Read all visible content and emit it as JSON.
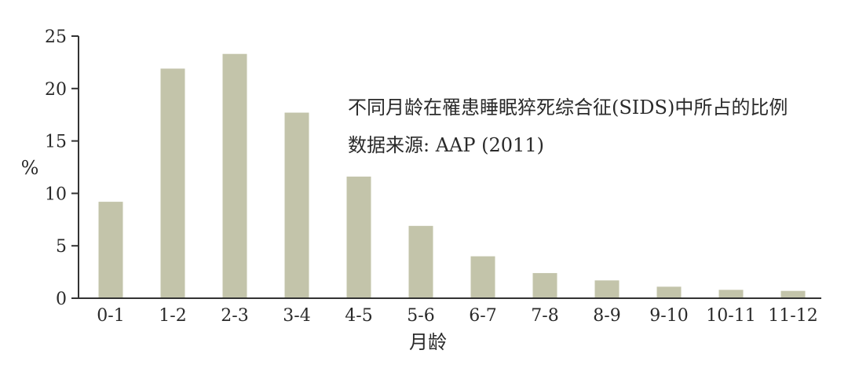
{
  "chart_data": {
    "type": "bar",
    "title": "不同月龄在罹患睡眠猝死综合征(SIDS)中所占的比例",
    "subtitle": "数据来源: AAP (2011)",
    "xlabel": "月龄",
    "ylabel": "%",
    "ylim": [
      0,
      25
    ],
    "yticks": [
      "0",
      "5",
      "10",
      "15",
      "20",
      "25"
    ],
    "yticks_values": [
      0,
      5,
      10,
      15,
      20,
      25
    ],
    "categories": [
      "0-1",
      "1-2",
      "2-3",
      "3-4",
      "4-5",
      "5-6",
      "6-7",
      "7-8",
      "8-9",
      "9-10",
      "10-11",
      "11-12"
    ],
    "values": [
      9.2,
      21.9,
      23.3,
      17.7,
      11.6,
      6.9,
      4.0,
      2.4,
      1.7,
      1.1,
      0.8,
      0.7
    ],
    "grid": false,
    "bar_color": "#c3c4aa",
    "axis_color": "#333333"
  }
}
